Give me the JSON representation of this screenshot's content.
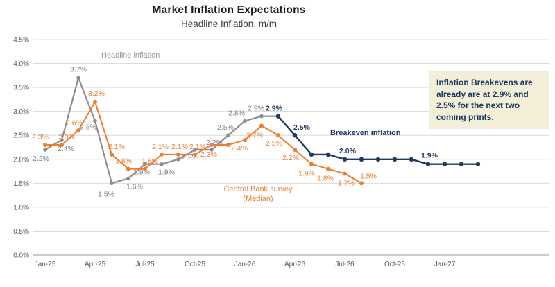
{
  "page": {
    "background": "#ffffff"
  },
  "header": {
    "title": "Market Inflation Expectations",
    "subtitle": "Headline Inflation, m/m"
  },
  "annotation_box": {
    "text": "Inflation Breakevens are already are at 2.9% and 2.5% for the next two coming prints.",
    "bg_color": "#f3eed8",
    "text_color": "#17375e"
  },
  "chart_data": {
    "type": "line",
    "title": "Market Inflation Expectations",
    "subtitle": "Headline Inflation, m/m",
    "ylabel": "",
    "xlabel": "",
    "ylim": [
      0,
      4.5
    ],
    "grid": true,
    "legend_position": "inline-labels",
    "ytick_labels": [
      "0.0%",
      "0.5%",
      "1.0%",
      "1.5%",
      "2.0%",
      "2.5%",
      "3.0%",
      "3.5%",
      "4.0%",
      "4.5%"
    ],
    "xticks": [
      {
        "month": 0,
        "label": "Jan-25"
      },
      {
        "month": 3,
        "label": "Apr-25"
      },
      {
        "month": 6,
        "label": "Jul-25"
      },
      {
        "month": 9,
        "label": "Oct-25"
      },
      {
        "month": 12,
        "label": "Jan-26"
      },
      {
        "month": 15,
        "label": "Apr-26"
      },
      {
        "month": 18,
        "label": "Jul-26"
      },
      {
        "month": 21,
        "label": "Oct-26"
      },
      {
        "month": 24,
        "label": "Jan-27"
      }
    ],
    "axis_color": "#595959",
    "grid_color": "#dcdcdc",
    "series": [
      {
        "name": "Headline inflation",
        "slug": "headline-inflation",
        "color": "#8c8c8c",
        "label_color": "#7f7f7f",
        "line_width": 2.2,
        "marker_r": 2.8,
        "bold_labels": false,
        "start_month": 0,
        "values": [
          2.2,
          2.4,
          3.7,
          2.8,
          1.5,
          1.6,
          1.9,
          1.9,
          2.0,
          2.2,
          2.2,
          2.5,
          2.8,
          2.9,
          2.9
        ],
        "point_labels": [
          [
            0,
            "2.2%",
            -6,
            16
          ],
          [
            1,
            "2.4%",
            6,
            16
          ],
          [
            2,
            "3.7%",
            0,
            -9
          ],
          [
            3,
            "2.8%",
            -10,
            12
          ],
          [
            4,
            "1.5%",
            -8,
            19
          ],
          [
            5,
            "1.6%",
            9,
            15
          ],
          [
            6,
            "1.9%",
            -5,
            15
          ],
          [
            7,
            "1.9%",
            7,
            15
          ],
          [
            9,
            "2.2%",
            -7,
            14
          ],
          [
            10,
            "2.2%",
            4,
            -7
          ],
          [
            11,
            "2.5%",
            -4,
            -8
          ],
          [
            12,
            "2.8%",
            -12,
            -8
          ],
          [
            13,
            "2.9%",
            -8,
            -8
          ]
        ]
      },
      {
        "name": "Central Bank survey (Median)",
        "slug": "central-bank-survey",
        "color": "#ed7d31",
        "label_color": "#ed7d31",
        "line_width": 2,
        "marker_r": 3,
        "bold_labels": false,
        "start_month": 0,
        "values": [
          2.3,
          2.3,
          2.6,
          3.2,
          2.1,
          1.8,
          1.8,
          2.1,
          2.1,
          2.1,
          2.3,
          2.3,
          2.4,
          2.7,
          2.5,
          2.2,
          1.9,
          1.8,
          1.7,
          1.5
        ],
        "point_labels": [
          [
            0,
            "2.3%",
            -7,
            -8
          ],
          [
            1,
            "2.3%",
            7,
            -8
          ],
          [
            2,
            "2.6%",
            -6,
            -8
          ],
          [
            3,
            "3.2%",
            2,
            -9
          ],
          [
            4,
            "2.1%",
            7,
            -8
          ],
          [
            5,
            "1.8%",
            -7,
            -8
          ],
          [
            6,
            "1.8%",
            7,
            -8
          ],
          [
            7,
            "2.1%",
            -2,
            -8
          ],
          [
            8,
            "2.1%",
            2,
            -8
          ],
          [
            9,
            "2.1%",
            4,
            -8
          ],
          [
            10,
            "2.3%",
            -4,
            17
          ],
          [
            12,
            "2.4%",
            -8,
            15
          ],
          [
            13,
            "2.7%",
            -10,
            17
          ],
          [
            14,
            "2.5%",
            -6,
            15
          ],
          [
            15,
            "2.2%",
            -6,
            15
          ],
          [
            16,
            "1.9%",
            -7,
            17
          ],
          [
            17,
            "1.8%",
            -4,
            17
          ],
          [
            18,
            "1.7%",
            2,
            17
          ],
          [
            19,
            "1.5%",
            10,
            -7
          ]
        ]
      },
      {
        "name": "Breakeven inflation",
        "slug": "breakeven-inflation",
        "color": "#1f3864",
        "label_color": "#1f3864",
        "line_width": 2.4,
        "marker_r": 3.2,
        "bold_labels": true,
        "start_month": 14,
        "values": [
          2.9,
          2.5,
          2.1,
          2.1,
          2.0,
          2.0,
          2.0,
          2.0,
          2.0,
          1.9,
          1.9,
          1.9,
          1.9
        ],
        "point_labels": [
          [
            0,
            "2.9%",
            -6,
            -8
          ],
          [
            1,
            "2.5%",
            10,
            -8
          ],
          [
            4,
            "2.0%",
            4,
            -9
          ],
          [
            9,
            "1.9%",
            2,
            -9
          ]
        ]
      }
    ]
  }
}
